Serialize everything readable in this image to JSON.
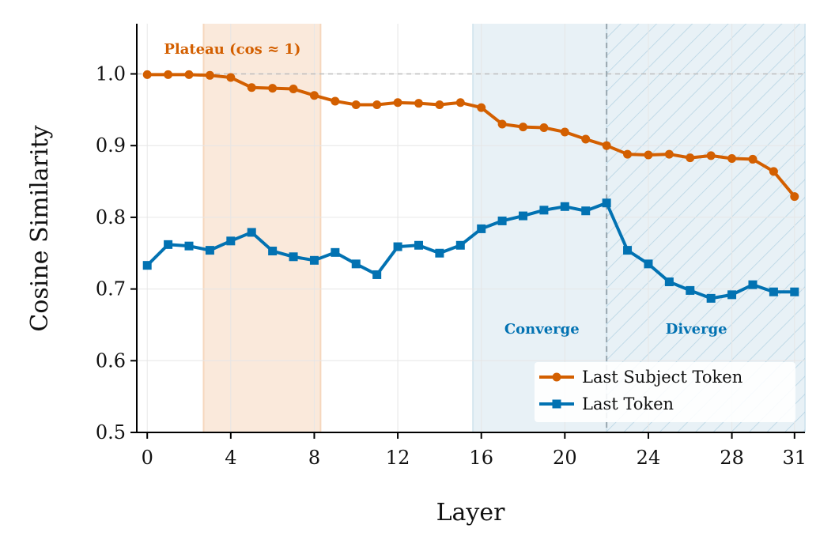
{
  "chart_data": {
    "type": "line",
    "xlabel": "Layer",
    "ylabel": "Cosine Similarity",
    "xlim": [
      -0.5,
      31.5
    ],
    "ylim": [
      0.5,
      1.07
    ],
    "xticks": [
      0,
      4,
      8,
      12,
      16,
      20,
      24,
      28,
      31
    ],
    "xtick_labels": [
      "0",
      "4",
      "8",
      "12",
      "16",
      "20",
      "24",
      "28",
      "31"
    ],
    "yticks": [
      0.5,
      0.6,
      0.7,
      0.8,
      0.9,
      1.0
    ],
    "ytick_labels": [
      "0.5",
      "0.6",
      "0.7",
      "0.8",
      "0.9",
      "1.0"
    ],
    "grid": true,
    "reference_line_y": 1.0,
    "divider_x": 22,
    "regions": [
      {
        "kind": "plateau",
        "x0": 2.7,
        "x1": 8.3,
        "color": "#f6d7bd",
        "label": "Plateau (cos ≈ 1)",
        "label_x": 0.8,
        "label_y": 1.028,
        "label_color": "#d35f00"
      },
      {
        "kind": "converge",
        "x0": 15.6,
        "x1": 22,
        "color": "#d5e6ef",
        "label": "Converge",
        "label_x": 18.9,
        "label_y": 0.638,
        "label_color": "#0272b2"
      },
      {
        "kind": "diverge",
        "x0": 22,
        "x1": 31.5,
        "color": "#d5e6ef",
        "label": "Diverge",
        "label_x": 26.3,
        "label_y": 0.638,
        "label_color": "#0272b2",
        "hatched": true
      }
    ],
    "x": [
      0,
      1,
      2,
      3,
      4,
      5,
      6,
      7,
      8,
      9,
      10,
      11,
      12,
      13,
      14,
      15,
      16,
      17,
      18,
      19,
      20,
      21,
      22,
      23,
      24,
      25,
      26,
      27,
      28,
      29,
      30,
      31
    ],
    "series": [
      {
        "name": "Last Subject Token",
        "color": "#d35f00",
        "marker": "circle",
        "values": [
          0.999,
          0.999,
          0.999,
          0.998,
          0.995,
          0.981,
          0.98,
          0.979,
          0.97,
          0.962,
          0.957,
          0.957,
          0.96,
          0.959,
          0.957,
          0.96,
          0.953,
          0.93,
          0.926,
          0.925,
          0.919,
          0.909,
          0.9,
          0.888,
          0.887,
          0.888,
          0.883,
          0.886,
          0.882,
          0.881,
          0.864,
          0.829
        ]
      },
      {
        "name": "Last Token",
        "color": "#0272b2",
        "marker": "square",
        "values": [
          0.733,
          0.762,
          0.76,
          0.754,
          0.767,
          0.779,
          0.753,
          0.745,
          0.74,
          0.751,
          0.735,
          0.72,
          0.759,
          0.761,
          0.75,
          0.761,
          0.784,
          0.795,
          0.802,
          0.81,
          0.815,
          0.809,
          0.82,
          0.754,
          0.735,
          0.71,
          0.698,
          0.687,
          0.692,
          0.706,
          0.696,
          0.696
        ]
      }
    ],
    "legend_position": "lower-right"
  }
}
